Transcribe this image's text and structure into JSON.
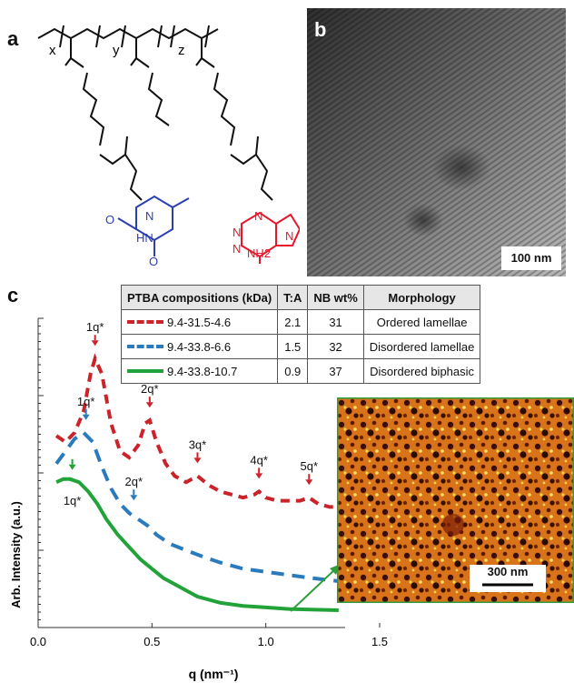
{
  "panels": {
    "a": "a",
    "b": "b",
    "c": "c"
  },
  "structure": {
    "subscripts": [
      "x",
      "y",
      "z"
    ],
    "thymine_labels": [
      "N",
      "O",
      "HN",
      "O"
    ],
    "adenine_labels": [
      "N",
      "N",
      "N",
      "N",
      "NH2"
    ]
  },
  "tem": {
    "scalebar_label": "100 nm"
  },
  "afm": {
    "scalebar_label": "300 nm"
  },
  "table": {
    "headers": [
      "PTBA compositions (kDa)",
      "T:A",
      "NB wt%",
      "Morphology"
    ],
    "rows": [
      {
        "composition": "9.4-31.5-4.6",
        "ta": "2.1",
        "nb": "31",
        "morphology": "Ordered lamellae",
        "color": "#cc2229",
        "style": "dashed-red"
      },
      {
        "composition": "9.4-33.8-6.6",
        "ta": "1.5",
        "nb": "32",
        "morphology": "Disordered lamellae",
        "color": "#2a7bbd",
        "style": "dashed-blue"
      },
      {
        "composition": "9.4-33.8-10.7",
        "ta": "0.9",
        "nb": "37",
        "morphology": "Disordered biphasic",
        "color": "#22a33a",
        "style": "solid-green"
      }
    ]
  },
  "chart_data": {
    "type": "line",
    "xlabel": "q (nm⁻¹)",
    "ylabel": "Arb. Intensity (a.u.)",
    "xlim": [
      0,
      1.75
    ],
    "xticks": [
      "0.0",
      "0.5",
      "1.0",
      "1.5"
    ],
    "yscale": "log",
    "series": [
      {
        "name": "9.4-31.5-4.6",
        "color": "#cc2229",
        "x": [
          0.08,
          0.12,
          0.16,
          0.2,
          0.23,
          0.25,
          0.28,
          0.32,
          0.36,
          0.4,
          0.44,
          0.47,
          0.49,
          0.52,
          0.56,
          0.6,
          0.65,
          0.7,
          0.75,
          0.8,
          0.85,
          0.9,
          0.95,
          0.97,
          1.0,
          1.05,
          1.1,
          1.15,
          1.19,
          1.23,
          1.28,
          1.32
        ],
        "y": [
          0.62,
          0.6,
          0.63,
          0.7,
          0.82,
          0.87,
          0.82,
          0.66,
          0.57,
          0.55,
          0.59,
          0.66,
          0.67,
          0.6,
          0.53,
          0.49,
          0.47,
          0.49,
          0.46,
          0.44,
          0.43,
          0.42,
          0.43,
          0.44,
          0.42,
          0.41,
          0.41,
          0.41,
          0.42,
          0.4,
          0.39,
          0.39
        ]
      },
      {
        "name": "9.4-33.8-6.6",
        "color": "#2a7bbd",
        "x": [
          0.08,
          0.12,
          0.16,
          0.2,
          0.24,
          0.28,
          0.32,
          0.36,
          0.4,
          0.44,
          0.48,
          0.52,
          0.58,
          0.65,
          0.72,
          0.8,
          0.9,
          1.0,
          1.1,
          1.2,
          1.32
        ],
        "y": [
          0.53,
          0.57,
          0.61,
          0.63,
          0.6,
          0.52,
          0.45,
          0.4,
          0.37,
          0.35,
          0.33,
          0.3,
          0.27,
          0.25,
          0.23,
          0.21,
          0.19,
          0.18,
          0.17,
          0.16,
          0.15
        ]
      },
      {
        "name": "9.4-33.8-10.7",
        "color": "#22a33a",
        "x": [
          0.08,
          0.11,
          0.14,
          0.18,
          0.22,
          0.26,
          0.3,
          0.35,
          0.4,
          0.45,
          0.5,
          0.55,
          0.6,
          0.65,
          0.7,
          0.8,
          0.9,
          1.0,
          1.1,
          1.2,
          1.32
        ],
        "y": [
          0.47,
          0.48,
          0.48,
          0.47,
          0.44,
          0.4,
          0.35,
          0.3,
          0.26,
          0.22,
          0.19,
          0.16,
          0.14,
          0.12,
          0.1,
          0.08,
          0.07,
          0.065,
          0.06,
          0.058,
          0.056
        ]
      }
    ],
    "annotations": [
      {
        "label": "1q*",
        "series": 0,
        "x": 0.25,
        "color": "#cc2229"
      },
      {
        "label": "2q*",
        "series": 0,
        "x": 0.49,
        "color": "#cc2229"
      },
      {
        "label": "3q*",
        "series": 0,
        "x": 0.7,
        "color": "#cc2229"
      },
      {
        "label": "4q*",
        "series": 0,
        "x": 0.97,
        "color": "#cc2229"
      },
      {
        "label": "5q*",
        "series": 0,
        "x": 1.19,
        "color": "#cc2229"
      },
      {
        "label": "1q*",
        "series": 1,
        "x": 0.21,
        "color": "#2a7bbd"
      },
      {
        "label": "2q*",
        "series": 1,
        "x": 0.42,
        "color": "#2a7bbd"
      },
      {
        "label": "1q*",
        "series": 2,
        "x": 0.15,
        "color": "#22a33a"
      }
    ]
  }
}
